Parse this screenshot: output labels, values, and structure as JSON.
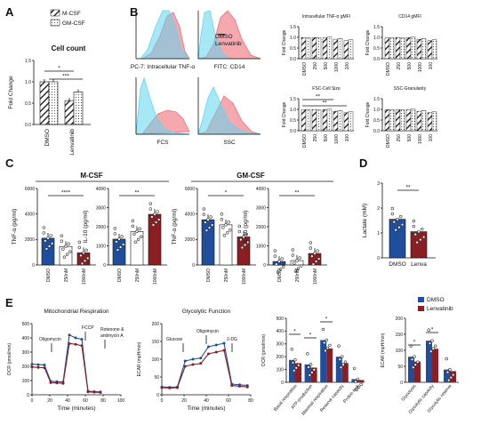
{
  "panels": {
    "A": {
      "label": "A",
      "legend": [
        "M-CSF",
        "GM-CSF"
      ],
      "title": "Cell count",
      "ylabel": "Fold Change",
      "yticks": [
        "0.0",
        "0.5",
        "1.0",
        "1.5"
      ],
      "xticks": [
        "DMSO",
        "Lenvatinib"
      ],
      "sig": [
        "*",
        "***"
      ],
      "values": [
        [
          1.0,
          1.0
        ],
        [
          0.56,
          0.76
        ]
      ]
    },
    "B": {
      "label": "B",
      "legend": [
        "DMSO",
        "Lenvatinib"
      ],
      "hist_labels": [
        "PC-7: Intracellular TNF-α",
        "FITC: CD14",
        "FCS",
        "SSC"
      ],
      "mini_titles": [
        "Intracellular TNF-α gMFI",
        "CD14 gMFI",
        "FSC-Cell Size",
        "SSC-Granularity"
      ],
      "mini_ylabel": "Fold Change",
      "mini_yticks": [
        "0.0",
        "0.5",
        "1.0",
        "1.5"
      ],
      "mini_xticks": [
        "DMSO",
        "250",
        "500",
        "1000",
        "100"
      ],
      "mini_sig": [
        "**",
        "**"
      ]
    },
    "C": {
      "label": "C",
      "group_titles": [
        "M-CSF",
        "GM-CSF"
      ],
      "subplots": [
        {
          "ylabel": "TNF-α (pg/ml)",
          "yticks": [
            "0",
            "2000",
            "4000",
            "6000"
          ],
          "xticks": [
            "DMSO",
            "250nM",
            "1000nM"
          ],
          "sig": "****",
          "values": [
            2100,
            1450,
            950
          ]
        },
        {
          "ylabel": "IL-10 (pg/ml)",
          "yticks": [
            "0",
            "1000",
            "2000",
            "3000",
            "4000"
          ],
          "xticks": [
            "DMSO",
            "250nM",
            "1000nM"
          ],
          "sig": "**",
          "values": [
            1350,
            1750,
            2650
          ]
        },
        {
          "ylabel": "TNF-α (pg/ml)",
          "yticks": [
            "0",
            "2000",
            "4000",
            "6000"
          ],
          "xticks": [
            "DMSO",
            "250nM",
            "1000nM"
          ],
          "sig": "*",
          "values": [
            3550,
            3150,
            2200
          ]
        },
        {
          "ylabel": "IL-10 (pg/ml)",
          "yticks": [
            "0",
            "1000",
            "2000",
            "3000",
            "4000"
          ],
          "xticks": [
            "DMSO",
            "250nM",
            "1000nM"
          ],
          "sig": "**",
          "values": [
            180,
            230,
            600
          ]
        }
      ]
    },
    "D": {
      "label": "D",
      "ylabel": "Lactate (mM)",
      "yticks": [
        "0",
        "1",
        "2",
        "3"
      ],
      "xticks": [
        "DMSO",
        "Lenva"
      ],
      "sig": "**",
      "values": [
        1.55,
        1.05
      ]
    },
    "E": {
      "label": "E",
      "legend": [
        "DMSO",
        "Lenvatinib"
      ],
      "line_titles": [
        "Mitochondrial Respiration",
        "Glycolytic Function"
      ],
      "mito": {
        "ylabel": "OCR (pmol/min)",
        "xlabel": "Time (minutes)",
        "yticks": [
          "0",
          "100",
          "200",
          "300",
          "400",
          "500"
        ],
        "xticks": [
          "0",
          "20",
          "40",
          "60",
          "80",
          "100"
        ],
        "annotations": [
          "Oligomycin",
          "FCCP",
          "Rotenone &",
          "antimycin A"
        ],
        "x": [
          0,
          7,
          14,
          21,
          28,
          35,
          42,
          49,
          56,
          63,
          70,
          77
        ],
        "dmso": [
          215,
          212,
          210,
          95,
          92,
          90,
          420,
          400,
          390,
          25,
          22,
          20
        ],
        "lenva": [
          195,
          192,
          190,
          85,
          83,
          80,
          360,
          355,
          345,
          20,
          18,
          16
        ]
      },
      "glyco": {
        "ylabel": "ECAR (mpH/min)",
        "xlabel": "Time (minutes)",
        "yticks": [
          "0",
          "50",
          "100",
          "150",
          "200"
        ],
        "xticks": [
          "0",
          "20",
          "40",
          "60",
          "80"
        ],
        "annotations": [
          "Glucose",
          "Oligomycin",
          "2-DG"
        ],
        "x": [
          0,
          7,
          14,
          21,
          28,
          35,
          42,
          49,
          56,
          63,
          70,
          77
        ],
        "dmso": [
          22,
          21,
          22,
          95,
          100,
          103,
          135,
          140,
          145,
          30,
          28,
          26
        ],
        "lenva": [
          20,
          19,
          20,
          80,
          85,
          88,
          115,
          120,
          125,
          26,
          24,
          22
        ]
      },
      "ocr_bars": {
        "ylabel": "OCR (pmol/min)",
        "yticks": [
          "0",
          "100",
          "200",
          "300",
          "400",
          "500"
        ],
        "categories": [
          "Basal respiration",
          "ATP-production",
          "Maximal respiration",
          "Reserve capacity",
          "Proton leak"
        ],
        "dmso": [
          175,
          140,
          330,
          200,
          25
        ],
        "lenva": [
          150,
          115,
          265,
          150,
          18
        ],
        "sig": [
          "*",
          "*",
          "*"
        ]
      },
      "ecar_bars": {
        "ylabel": "ECAR (mpH/min)",
        "yticks": [
          "0",
          "50",
          "100",
          "150",
          "200"
        ],
        "categories": [
          "Glycolysis",
          "Glycolytic capacity",
          "Glycolytic reserve"
        ],
        "dmso": [
          80,
          130,
          40
        ],
        "lenva": [
          65,
          105,
          35
        ],
        "sig": [
          "*",
          "*"
        ]
      }
    }
  },
  "colors": {
    "dmso": "#1f4e9c",
    "lenvatinib": "#8b1e22",
    "cyan": "#5fd6f0",
    "red": "#ef6f78",
    "axis": "#111111"
  },
  "chart_data": [
    {
      "type": "bar",
      "title": "Cell count",
      "ylabel": "Fold Change",
      "categories": [
        "DMSO",
        "Lenvatinib"
      ],
      "series": [
        {
          "name": "M-CSF",
          "values": [
            1.0,
            0.56
          ]
        },
        {
          "name": "GM-CSF",
          "values": [
            1.0,
            0.76
          ]
        }
      ],
      "ylim": [
        0,
        1.5
      ]
    },
    {
      "type": "bar",
      "title": "M-CSF",
      "ylabel": "TNF-α (pg/ml)",
      "categories": [
        "DMSO",
        "250nM",
        "1000nM"
      ],
      "values": [
        2100,
        1450,
        950
      ],
      "ylim": [
        0,
        6000
      ]
    },
    {
      "type": "bar",
      "title": "M-CSF",
      "ylabel": "IL-10 (pg/ml)",
      "categories": [
        "DMSO",
        "250nM",
        "1000nM"
      ],
      "values": [
        1350,
        1750,
        2650
      ],
      "ylim": [
        0,
        4000
      ]
    },
    {
      "type": "bar",
      "title": "GM-CSF",
      "ylabel": "TNF-α (pg/ml)",
      "categories": [
        "DMSO",
        "250nM",
        "1000nM"
      ],
      "values": [
        3550,
        3150,
        2200
      ],
      "ylim": [
        0,
        6000
      ]
    },
    {
      "type": "bar",
      "title": "GM-CSF",
      "ylabel": "IL-10 (pg/ml)",
      "categories": [
        "DMSO",
        "250nM",
        "1000nM"
      ],
      "values": [
        180,
        230,
        600
      ],
      "ylim": [
        0,
        4000
      ]
    },
    {
      "type": "bar",
      "ylabel": "Lactate (mM)",
      "categories": [
        "DMSO",
        "Lenva"
      ],
      "values": [
        1.55,
        1.05
      ],
      "ylim": [
        0,
        3
      ]
    },
    {
      "type": "line",
      "title": "Mitochondrial Respiration",
      "xlabel": "Time (minutes)",
      "ylabel": "OCR (pmol/min)",
      "x": [
        0,
        7,
        14,
        21,
        28,
        35,
        42,
        49,
        56,
        63,
        70,
        77
      ],
      "series": [
        {
          "name": "DMSO",
          "values": [
            215,
            212,
            210,
            95,
            92,
            90,
            420,
            400,
            390,
            25,
            22,
            20
          ]
        },
        {
          "name": "Lenvatinib",
          "values": [
            195,
            192,
            190,
            85,
            83,
            80,
            360,
            355,
            345,
            20,
            18,
            16
          ]
        }
      ],
      "ylim": [
        0,
        500
      ]
    },
    {
      "type": "line",
      "title": "Glycolytic Function",
      "xlabel": "Time (minutes)",
      "ylabel": "ECAR (mpH/min)",
      "x": [
        0,
        7,
        14,
        21,
        28,
        35,
        42,
        49,
        56,
        63,
        70,
        77
      ],
      "series": [
        {
          "name": "DMSO",
          "values": [
            22,
            21,
            22,
            95,
            100,
            103,
            135,
            140,
            145,
            30,
            28,
            26
          ]
        },
        {
          "name": "Lenvatinib",
          "values": [
            20,
            19,
            20,
            80,
            85,
            88,
            115,
            120,
            125,
            26,
            24,
            22
          ]
        }
      ],
      "ylim": [
        0,
        200
      ]
    },
    {
      "type": "bar",
      "ylabel": "OCR (pmol/min)",
      "categories": [
        "Basal respiration",
        "ATP-production",
        "Maximal respiration",
        "Reserve capacity",
        "Proton leak"
      ],
      "series": [
        {
          "name": "DMSO",
          "values": [
            175,
            140,
            330,
            200,
            25
          ]
        },
        {
          "name": "Lenvatinib",
          "values": [
            150,
            115,
            265,
            150,
            18
          ]
        }
      ],
      "ylim": [
        0,
        500
      ]
    },
    {
      "type": "bar",
      "ylabel": "ECAR (mpH/min)",
      "categories": [
        "Glycolysis",
        "Glycolytic capacity",
        "Glycolytic reserve"
      ],
      "series": [
        {
          "name": "DMSO",
          "values": [
            80,
            130,
            40
          ]
        },
        {
          "name": "Lenvatinib",
          "values": [
            65,
            105,
            35
          ]
        }
      ],
      "ylim": [
        0,
        200
      ]
    }
  ]
}
